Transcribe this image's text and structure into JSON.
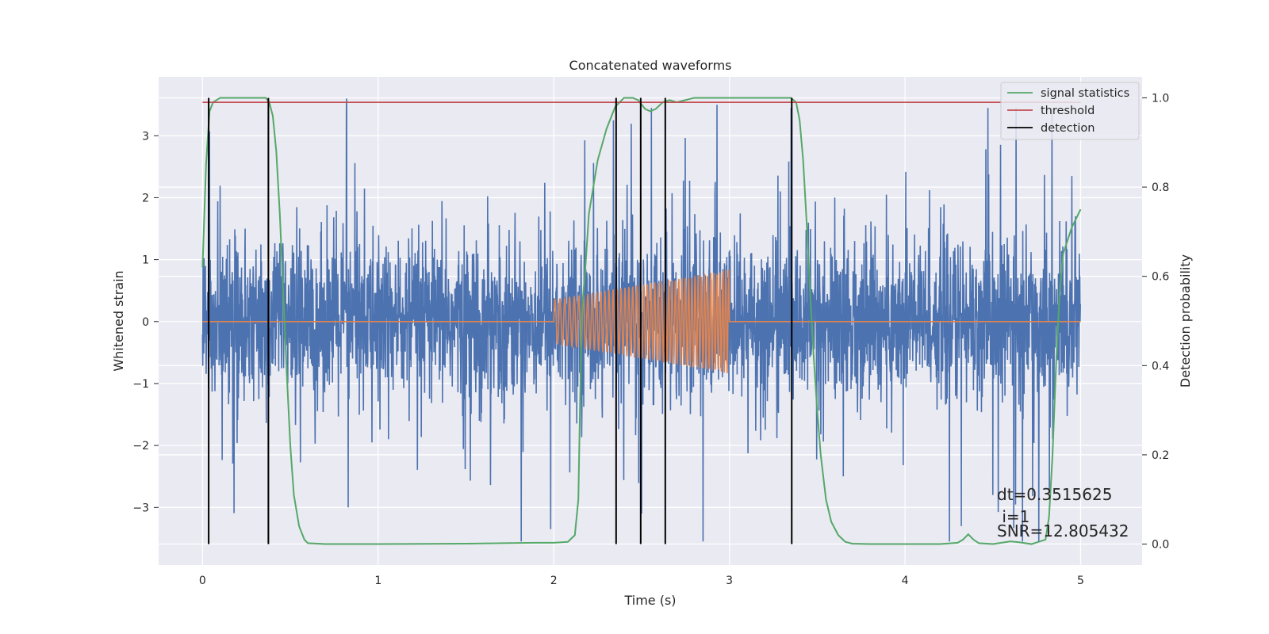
{
  "chart_data": {
    "type": "line",
    "title": "Concatenated waveforms",
    "xlabel": "Time (s)",
    "ylabel": "Whitened strain",
    "ylabel_right": "Detection probability",
    "xlim": [
      -0.25,
      5.35
    ],
    "ylim": [
      -3.93,
      3.95
    ],
    "ylim_right": [
      -0.047,
      1.047
    ],
    "x_ticks": [
      0,
      1,
      2,
      3,
      4,
      5
    ],
    "x_tick_labels": [
      "0",
      "1",
      "2",
      "3",
      "4",
      "5"
    ],
    "y_ticks": [
      -3,
      -2,
      -1,
      0,
      1,
      2,
      3
    ],
    "y_tick_labels": [
      "−3",
      "−2",
      "−1",
      "0",
      "1",
      "2",
      "3"
    ],
    "y_ticks_right": [
      0.0,
      0.2,
      0.4,
      0.6,
      0.8,
      1.0
    ],
    "y_tick_labels_right": [
      "0.0",
      "0.2",
      "0.4",
      "0.6",
      "0.8",
      "1.0"
    ],
    "grid": true,
    "legend_position": "top-right",
    "colors": {
      "strain": "#4c72b0",
      "injection": "#dd8452",
      "signal_statistics": "#55a868",
      "threshold": "#c44e52",
      "detection": "#000000",
      "axes_bg": "#eaeaf2",
      "grid": "#ffffff"
    },
    "strain": {
      "t_start": 0,
      "t_end": 5,
      "std": 0.62,
      "peaks": [
        [
          0.04,
          3.07
        ],
        [
          0.82,
          3.6
        ],
        [
          0.83,
          -3.0
        ],
        [
          2.5,
          -3.1
        ],
        [
          2.85,
          -3.55
        ],
        [
          2.93,
          3.5
        ],
        [
          4.32,
          -3.3
        ],
        [
          4.5,
          -2.8
        ],
        [
          4.95,
          2.35
        ]
      ]
    },
    "injection": {
      "t_start": 2.0,
      "t_end": 3.0,
      "amp_start": 0.36,
      "amp_end": 0.84,
      "f_start": 35,
      "f_end": 60
    },
    "series": [
      {
        "name": "signal statistics",
        "x": [
          0.0,
          0.02,
          0.04,
          0.06,
          0.1,
          0.15,
          0.2,
          0.3,
          0.36,
          0.38,
          0.4,
          0.42,
          0.44,
          0.46,
          0.48,
          0.5,
          0.52,
          0.55,
          0.58,
          0.6,
          0.7,
          1.0,
          1.5,
          1.9,
          2.0,
          2.08,
          2.12,
          2.14,
          2.15,
          2.16,
          2.18,
          2.2,
          2.25,
          2.3,
          2.35,
          2.4,
          2.45,
          2.48,
          2.5,
          2.52,
          2.55,
          2.58,
          2.62,
          2.66,
          2.7,
          2.75,
          2.8,
          2.85,
          2.9,
          3.0,
          3.2,
          3.35,
          3.38,
          3.4,
          3.42,
          3.44,
          3.46,
          3.48,
          3.5,
          3.52,
          3.55,
          3.58,
          3.62,
          3.66,
          3.7,
          3.8,
          4.0,
          4.2,
          4.3,
          4.33,
          4.36,
          4.39,
          4.42,
          4.5,
          4.6,
          4.65,
          4.72,
          4.8,
          4.82,
          4.84,
          4.86,
          4.88,
          4.9,
          4.95,
          5.0
        ],
        "y": [
          0.62,
          0.85,
          0.97,
          0.99,
          1.0,
          1.0,
          1.0,
          1.0,
          1.0,
          0.99,
          0.96,
          0.88,
          0.74,
          0.56,
          0.38,
          0.22,
          0.11,
          0.04,
          0.01,
          0.002,
          0.0,
          0.0,
          0.001,
          0.003,
          0.003,
          0.005,
          0.02,
          0.1,
          0.32,
          0.52,
          0.62,
          0.74,
          0.86,
          0.93,
          0.98,
          1.0,
          1.0,
          0.995,
          0.985,
          0.975,
          0.97,
          0.975,
          0.99,
          0.995,
          0.99,
          0.995,
          1.0,
          1.0,
          1.0,
          1.0,
          1.0,
          1.0,
          0.99,
          0.95,
          0.86,
          0.72,
          0.56,
          0.42,
          0.3,
          0.2,
          0.1,
          0.05,
          0.02,
          0.005,
          0.001,
          0.0,
          0.0,
          0.0,
          0.003,
          0.01,
          0.022,
          0.01,
          0.002,
          0.0,
          0.006,
          0.004,
          0.0,
          0.01,
          0.06,
          0.2,
          0.4,
          0.56,
          0.65,
          0.71,
          0.75
        ]
      },
      {
        "name": "threshold",
        "x": [
          0.0,
          5.0
        ],
        "y": [
          0.99,
          0.99
        ]
      },
      {
        "name": "detection",
        "x": [
          0.035,
          0.375,
          2.355,
          2.495,
          2.635,
          3.355
        ]
      }
    ],
    "annotation": {
      "dt": "dt=0.3515625",
      "i": " i=1",
      "snr": "SNR=12.805432"
    }
  }
}
